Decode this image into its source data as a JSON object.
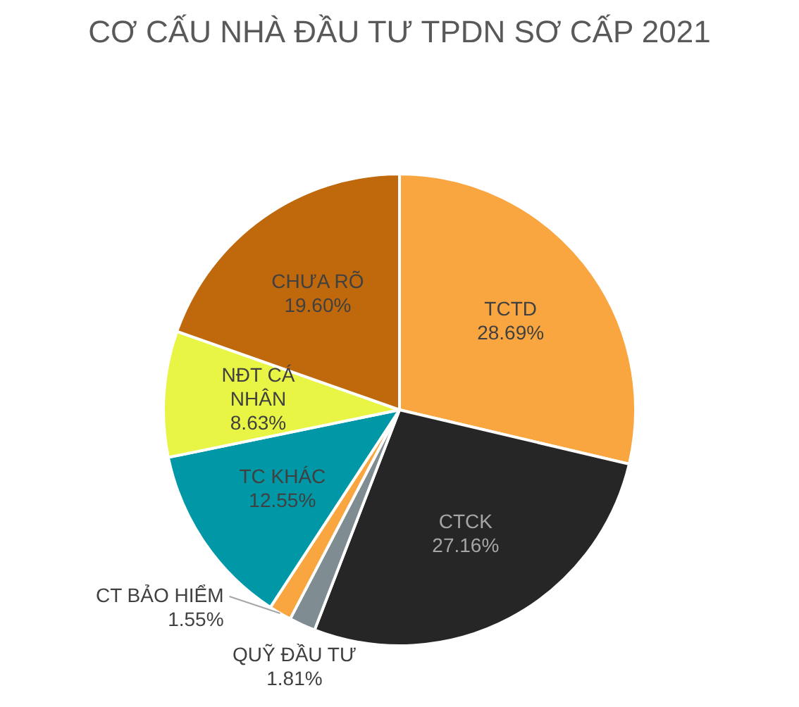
{
  "chart_data": {
    "type": "pie",
    "title": "CƠ CẤU NHÀ ĐẦU TƯ TPDN SƠ CẤP 2021",
    "categories": [
      "TCTD",
      "CTCK",
      "QUỸ ĐẦU TƯ",
      "CT BẢO HIỂM",
      "TC KHÁC",
      "NĐT CÁ NHÂN",
      "CHƯA RÕ"
    ],
    "values": [
      28.69,
      27.16,
      1.81,
      1.55,
      12.55,
      8.63,
      19.6
    ],
    "colors": [
      "#f9a640",
      "#262626",
      "#7f8c91",
      "#f9a640",
      "#0097a7",
      "#e8f545",
      "#c0680c"
    ],
    "value_labels": [
      "28.69%",
      "27.16%",
      "1.81%",
      "1.55%",
      "12.55%",
      "8.63%",
      "19.60%"
    ],
    "legend": false
  }
}
